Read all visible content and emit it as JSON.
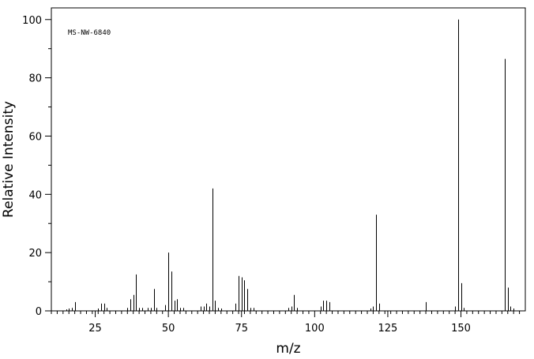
{
  "chart_data": {
    "type": "bar",
    "annotation": "MS-NW-6840",
    "xlabel": "m/z",
    "ylabel": "Relative Intensity",
    "xlim": [
      10,
      172
    ],
    "ylim": [
      0,
      104
    ],
    "x_ticks": [
      25,
      50,
      75,
      100,
      125,
      150
    ],
    "y_ticks": [
      0,
      20,
      40,
      60,
      80,
      100
    ],
    "x": [
      15,
      16,
      17,
      18,
      26,
      27,
      28,
      29,
      36,
      37,
      38,
      39,
      40,
      41,
      43,
      44,
      45,
      46,
      49,
      50,
      51,
      52,
      53,
      54,
      55,
      61,
      62,
      63,
      64,
      65,
      66,
      67,
      68,
      73,
      74,
      75,
      76,
      77,
      78,
      79,
      91,
      92,
      93,
      94,
      102,
      103,
      104,
      105,
      119,
      120,
      121,
      122,
      138,
      148,
      149,
      150,
      151,
      165,
      166,
      167,
      168
    ],
    "y": [
      0.5,
      0.8,
      1.0,
      3.0,
      0.8,
      2.5,
      2.5,
      1.0,
      1.0,
      4.0,
      5.5,
      12.5,
      1.0,
      1.0,
      1.0,
      1.0,
      7.5,
      1.0,
      2.0,
      20.0,
      13.5,
      3.5,
      4.0,
      1.0,
      1.0,
      1.5,
      1.5,
      2.5,
      1.5,
      42.0,
      3.5,
      1.0,
      0.8,
      2.5,
      12.0,
      11.5,
      10.5,
      7.5,
      1.0,
      1.0,
      1.0,
      1.5,
      5.5,
      1.0,
      1.5,
      3.5,
      3.5,
      3.0,
      0.8,
      1.5,
      33.0,
      2.5,
      3.0,
      1.5,
      100.0,
      9.5,
      1.0,
      86.5,
      8.0,
      1.5,
      0.8
    ]
  }
}
